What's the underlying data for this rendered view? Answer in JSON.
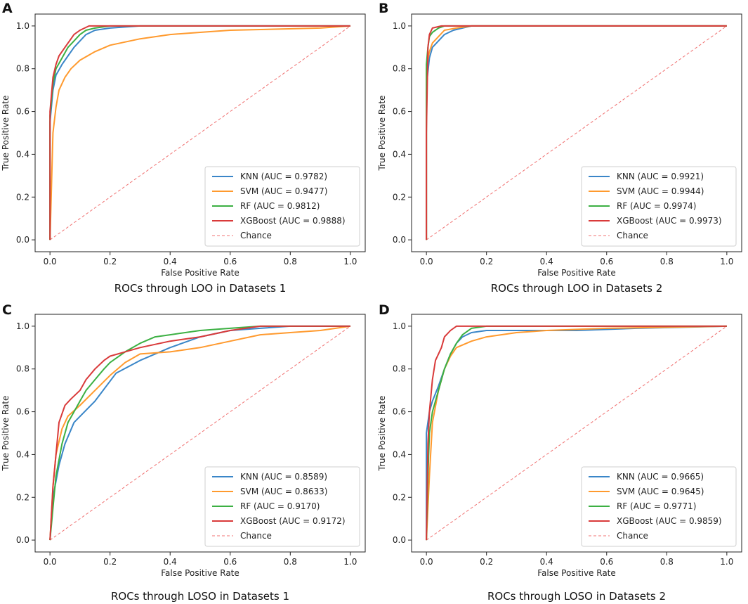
{
  "figure": {
    "colors": {
      "KNN": "#3a86c8",
      "SVM": "#ff9a2e",
      "RF": "#3cb043",
      "XGBoost": "#d93a3a",
      "Chance": "#f07070"
    }
  },
  "chart_data": [
    {
      "type": "line",
      "panel_label": "A",
      "title": "ROCs through LOO in Datasets 1",
      "xlabel": "False Positive Rate",
      "ylabel": "True Positive Rate",
      "xlim": [
        0.0,
        1.0
      ],
      "ylim": [
        0.0,
        1.0
      ],
      "xticks": [
        "0.0",
        "0.2",
        "0.4",
        "0.6",
        "0.8",
        "1.0"
      ],
      "yticks": [
        "0.0",
        "0.2",
        "0.4",
        "0.6",
        "0.8",
        "1.0"
      ],
      "legend_position": "lower-right",
      "series": [
        {
          "name": "KNN",
          "label": "KNN (AUC = 0.9782)",
          "color": "#3a86c8",
          "x": [
            0,
            0,
            0.01,
            0.02,
            0.04,
            0.06,
            0.08,
            0.1,
            0.12,
            0.15,
            0.2,
            0.3,
            1.0
          ],
          "y": [
            0,
            0.55,
            0.7,
            0.77,
            0.82,
            0.86,
            0.9,
            0.93,
            0.96,
            0.98,
            0.99,
            1.0,
            1.0
          ]
        },
        {
          "name": "SVM",
          "label": "SVM (AUC = 0.9477)",
          "color": "#ff9a2e",
          "x": [
            0,
            0.005,
            0.01,
            0.02,
            0.03,
            0.05,
            0.07,
            0.1,
            0.15,
            0.2,
            0.3,
            0.4,
            0.5,
            0.6,
            0.9,
            1.0
          ],
          "y": [
            0,
            0.25,
            0.5,
            0.62,
            0.7,
            0.76,
            0.8,
            0.84,
            0.88,
            0.91,
            0.94,
            0.96,
            0.97,
            0.98,
            0.99,
            1.0
          ]
        },
        {
          "name": "RF",
          "label": "RF (AUC = 0.9812)",
          "color": "#3cb043",
          "x": [
            0,
            0,
            0.01,
            0.02,
            0.04,
            0.06,
            0.08,
            0.1,
            0.12,
            0.15,
            0.2,
            1.0
          ],
          "y": [
            0,
            0.58,
            0.73,
            0.8,
            0.85,
            0.9,
            0.93,
            0.96,
            0.98,
            0.99,
            1.0,
            1.0
          ]
        },
        {
          "name": "XGBoost",
          "label": "XGBoost (AUC = 0.9888)",
          "color": "#d93a3a",
          "x": [
            0,
            0,
            0.01,
            0.02,
            0.03,
            0.05,
            0.07,
            0.08,
            0.1,
            0.13,
            1.0
          ],
          "y": [
            0,
            0.6,
            0.76,
            0.82,
            0.86,
            0.9,
            0.94,
            0.96,
            0.98,
            1.0,
            1.0
          ]
        },
        {
          "name": "Chance",
          "label": "Chance",
          "color": "#f07070",
          "dashed": true,
          "x": [
            0,
            1
          ],
          "y": [
            0,
            1
          ]
        }
      ]
    },
    {
      "type": "line",
      "panel_label": "B",
      "title": "ROCs through LOO in Datasets 2",
      "xlabel": "False Positive Rate",
      "ylabel": "True Positive Rate",
      "xlim": [
        0.0,
        1.0
      ],
      "ylim": [
        0.0,
        1.0
      ],
      "xticks": [
        "0.0",
        "0.2",
        "0.4",
        "0.6",
        "0.8",
        "1.0"
      ],
      "yticks": [
        "0.0",
        "0.2",
        "0.4",
        "0.6",
        "0.8",
        "1.0"
      ],
      "legend_position": "lower-right",
      "series": [
        {
          "name": "KNN",
          "label": "KNN (AUC = 0.9921)",
          "color": "#3a86c8",
          "x": [
            0,
            0,
            0.01,
            0.02,
            0.04,
            0.06,
            0.09,
            0.12,
            0.15,
            1.0
          ],
          "y": [
            0,
            0.72,
            0.85,
            0.9,
            0.93,
            0.96,
            0.98,
            0.99,
            1.0,
            1.0
          ]
        },
        {
          "name": "SVM",
          "label": "SVM (AUC = 0.9944)",
          "color": "#ff9a2e",
          "x": [
            0,
            0,
            0.01,
            0.02,
            0.04,
            0.06,
            0.1,
            0.15,
            1.0
          ],
          "y": [
            0,
            0.8,
            0.88,
            0.92,
            0.95,
            0.98,
            0.99,
            1.0,
            1.0
          ]
        },
        {
          "name": "RF",
          "label": "RF (AUC = 0.9974)",
          "color": "#3cb043",
          "x": [
            0,
            0,
            0.005,
            0.01,
            0.02,
            0.04,
            0.06,
            1.0
          ],
          "y": [
            0,
            0.82,
            0.9,
            0.95,
            0.97,
            0.99,
            1.0,
            1.0
          ]
        },
        {
          "name": "XGBoost",
          "label": "XGBoost (AUC = 0.9973)",
          "color": "#d93a3a",
          "x": [
            0,
            0,
            0.005,
            0.01,
            0.02,
            0.05,
            1.0
          ],
          "y": [
            0,
            0.5,
            0.9,
            0.96,
            0.99,
            1.0,
            1.0
          ]
        },
        {
          "name": "Chance",
          "label": "Chance",
          "color": "#f07070",
          "dashed": true,
          "x": [
            0,
            1
          ],
          "y": [
            0,
            1
          ]
        }
      ]
    },
    {
      "type": "line",
      "panel_label": "C",
      "title": "ROCs through LOSO in Datasets 1",
      "xlabel": "False Positive Rate",
      "ylabel": "True Positive Rate",
      "xlim": [
        0.0,
        1.0
      ],
      "ylim": [
        0.0,
        1.0
      ],
      "xticks": [
        "0.0",
        "0.2",
        "0.4",
        "0.6",
        "0.8",
        "1.0"
      ],
      "yticks": [
        "0.0",
        "0.2",
        "0.4",
        "0.6",
        "0.8",
        "1.0"
      ],
      "legend_position": "lower-right",
      "series": [
        {
          "name": "KNN",
          "label": "KNN (AUC = 0.8589)",
          "color": "#3a86c8",
          "x": [
            0,
            0.01,
            0.03,
            0.05,
            0.08,
            0.15,
            0.22,
            0.3,
            0.4,
            0.5,
            0.6,
            0.7,
            0.8,
            1.0
          ],
          "y": [
            0,
            0.2,
            0.35,
            0.45,
            0.55,
            0.65,
            0.78,
            0.84,
            0.9,
            0.95,
            0.98,
            0.99,
            1.0,
            1.0
          ]
        },
        {
          "name": "SVM",
          "label": "SVM (AUC = 0.8633)",
          "color": "#ff9a2e",
          "x": [
            0,
            0.01,
            0.02,
            0.04,
            0.06,
            0.1,
            0.15,
            0.2,
            0.25,
            0.3,
            0.4,
            0.5,
            0.6,
            0.7,
            0.8,
            0.9,
            1.0
          ],
          "y": [
            0,
            0.25,
            0.4,
            0.52,
            0.58,
            0.63,
            0.7,
            0.77,
            0.83,
            0.87,
            0.88,
            0.9,
            0.93,
            0.96,
            0.97,
            0.98,
            1.0
          ]
        },
        {
          "name": "RF",
          "label": "RF (AUC = 0.9170)",
          "color": "#3cb043",
          "x": [
            0,
            0.01,
            0.02,
            0.04,
            0.06,
            0.08,
            0.1,
            0.12,
            0.15,
            0.18,
            0.2,
            0.25,
            0.3,
            0.35,
            0.4,
            0.5,
            0.6,
            0.7,
            1.0
          ],
          "y": [
            0,
            0.15,
            0.3,
            0.45,
            0.55,
            0.6,
            0.65,
            0.7,
            0.75,
            0.8,
            0.83,
            0.88,
            0.92,
            0.95,
            0.96,
            0.98,
            0.99,
            1.0,
            1.0
          ]
        },
        {
          "name": "XGBoost",
          "label": "XGBoost (AUC = 0.9172)",
          "color": "#d93a3a",
          "x": [
            0,
            0.01,
            0.02,
            0.03,
            0.05,
            0.07,
            0.1,
            0.12,
            0.15,
            0.18,
            0.2,
            0.25,
            0.3,
            0.4,
            0.5,
            0.6,
            0.7,
            1.0
          ],
          "y": [
            0,
            0.25,
            0.4,
            0.55,
            0.63,
            0.66,
            0.7,
            0.75,
            0.8,
            0.84,
            0.86,
            0.88,
            0.9,
            0.93,
            0.95,
            0.98,
            1.0,
            1.0
          ]
        },
        {
          "name": "Chance",
          "label": "Chance",
          "color": "#f07070",
          "dashed": true,
          "x": [
            0,
            1
          ],
          "y": [
            0,
            1
          ]
        }
      ]
    },
    {
      "type": "line",
      "panel_label": "D",
      "title": "ROCs through LOSO in Datasets 2",
      "xlabel": "False Positive Rate",
      "ylabel": "True Positive Rate",
      "xlim": [
        0.0,
        1.0
      ],
      "ylim": [
        0.0,
        1.0
      ],
      "xticks": [
        "0.0",
        "0.2",
        "0.4",
        "0.6",
        "0.8",
        "1.0"
      ],
      "yticks": [
        "0.0",
        "0.2",
        "0.4",
        "0.6",
        "0.8",
        "1.0"
      ],
      "legend_position": "lower-right",
      "series": [
        {
          "name": "KNN",
          "label": "KNN (AUC = 0.9665)",
          "color": "#3a86c8",
          "x": [
            0,
            0,
            0.01,
            0.02,
            0.04,
            0.06,
            0.08,
            0.1,
            0.12,
            0.15,
            0.2,
            0.5,
            0.7,
            1.0
          ],
          "y": [
            0,
            0.5,
            0.6,
            0.65,
            0.72,
            0.8,
            0.87,
            0.92,
            0.95,
            0.97,
            0.98,
            0.98,
            0.99,
            1.0
          ]
        },
        {
          "name": "SVM",
          "label": "SVM (AUC = 0.9645)",
          "color": "#ff9a2e",
          "x": [
            0,
            0.01,
            0.02,
            0.04,
            0.06,
            0.08,
            0.1,
            0.15,
            0.2,
            0.3,
            0.4,
            0.6,
            0.8,
            1.0
          ],
          "y": [
            0,
            0.3,
            0.55,
            0.7,
            0.8,
            0.86,
            0.9,
            0.93,
            0.95,
            0.97,
            0.98,
            0.99,
            0.995,
            1.0
          ]
        },
        {
          "name": "RF",
          "label": "RF (AUC = 0.9771)",
          "color": "#3cb043",
          "x": [
            0,
            0.005,
            0.01,
            0.02,
            0.04,
            0.06,
            0.08,
            0.1,
            0.12,
            0.15,
            0.2,
            1.0
          ],
          "y": [
            0,
            0.3,
            0.5,
            0.6,
            0.7,
            0.8,
            0.87,
            0.92,
            0.96,
            0.99,
            1.0,
            1.0
          ]
        },
        {
          "name": "XGBoost",
          "label": "XGBoost (AUC = 0.9859)",
          "color": "#d93a3a",
          "x": [
            0,
            0.005,
            0.01,
            0.02,
            0.03,
            0.04,
            0.05,
            0.06,
            0.08,
            0.1,
            1.0
          ],
          "y": [
            0,
            0.45,
            0.6,
            0.75,
            0.84,
            0.87,
            0.9,
            0.95,
            0.98,
            1.0,
            1.0
          ]
        },
        {
          "name": "Chance",
          "label": "Chance",
          "color": "#f07070",
          "dashed": true,
          "x": [
            0,
            1
          ],
          "y": [
            0,
            1
          ]
        }
      ]
    }
  ]
}
